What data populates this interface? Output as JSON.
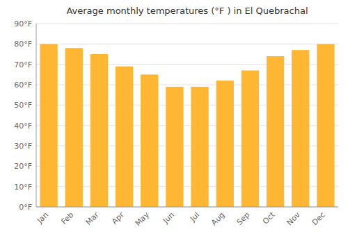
{
  "chart_data": {
    "type": "bar",
    "title": "Average monthly temperatures (°F ) in El Quebrachal",
    "categories": [
      "Jan",
      "Feb",
      "Mar",
      "Apr",
      "May",
      "Jun",
      "Jul",
      "Aug",
      "Sep",
      "Oct",
      "Nov",
      "Dec"
    ],
    "values": [
      80,
      78,
      75,
      69,
      65,
      59,
      59,
      62,
      67,
      74,
      77,
      80
    ],
    "color": "#FFB733",
    "ylim": [
      0,
      90
    ],
    "yticks": [
      {
        "value": 0,
        "label": "0°F"
      },
      {
        "value": 10,
        "label": "10°F"
      },
      {
        "value": 20,
        "label": "20°F"
      },
      {
        "value": 30,
        "label": "30°F"
      },
      {
        "value": 40,
        "label": "40°F"
      },
      {
        "value": 50,
        "label": "50°F"
      },
      {
        "value": 60,
        "label": "60°F"
      },
      {
        "value": 70,
        "label": "70°F"
      },
      {
        "value": 80,
        "label": "80°F"
      },
      {
        "value": 90,
        "label": "90°F"
      }
    ],
    "grid": true
  }
}
